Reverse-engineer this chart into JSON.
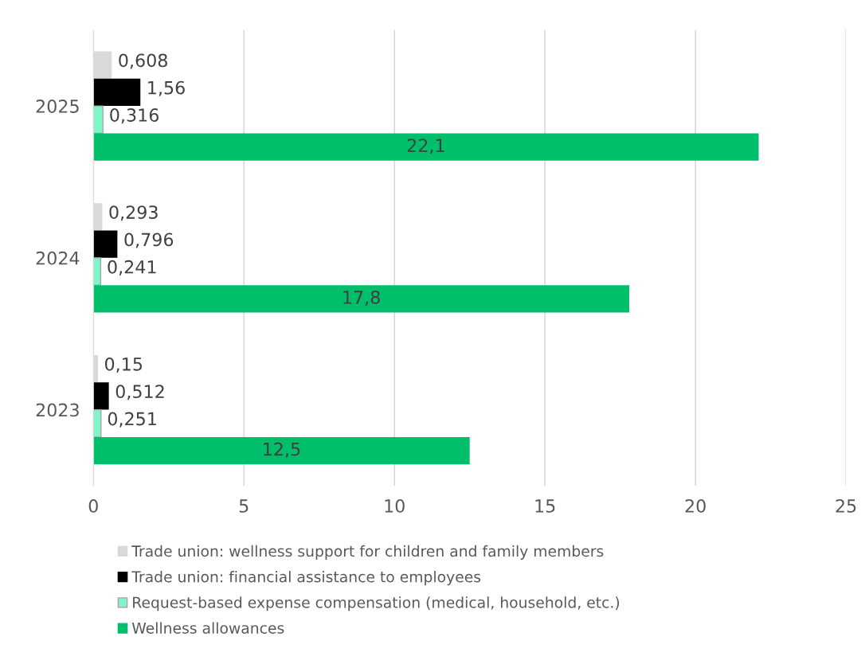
{
  "chart_data": {
    "type": "bar",
    "orientation": "horizontal",
    "categories": [
      "2025",
      "2024",
      "2023"
    ],
    "series": [
      {
        "name": "Trade union: wellness support for children and family members",
        "color": "#d9d9d9",
        "values": [
          0.608,
          0.293,
          0.15
        ],
        "value_labels": [
          "0,608",
          "0,293",
          "0,15"
        ]
      },
      {
        "name": "Trade union: financial assistance to employees",
        "color": "#000000",
        "values": [
          1.56,
          0.796,
          0.512
        ],
        "value_labels": [
          "1,56",
          "0,796",
          "0,512"
        ]
      },
      {
        "name": "Request-based expense compensation (medical, household, etc.)",
        "color": "#80f5c8",
        "values": [
          0.316,
          0.241,
          0.251
        ],
        "value_labels": [
          "0,316",
          "0,241",
          "0,251"
        ]
      },
      {
        "name": "Wellness allowances",
        "color": "#00bf6a",
        "values": [
          22.1,
          17.8,
          12.5
        ],
        "value_labels": [
          "22,1",
          "17,8",
          "12,5"
        ]
      }
    ],
    "xlim": [
      0,
      25
    ],
    "xticks": [
      0,
      5,
      10,
      15,
      20,
      25
    ],
    "grid": "x",
    "legend": "bottom"
  }
}
